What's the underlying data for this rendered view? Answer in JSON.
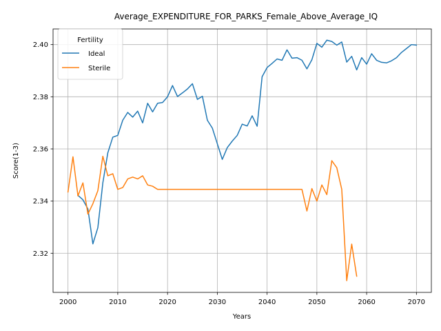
{
  "chart_data": {
    "type": "line",
    "title": "Average_EXPENDITURE_FOR_PARKS_Female_Above_Average_IQ",
    "xlabel": "Years",
    "ylabel": "Score(1-3)",
    "xlim": [
      1997,
      2073
    ],
    "ylim": [
      2.305,
      2.406
    ],
    "xticks": [
      2000,
      2010,
      2020,
      2030,
      2040,
      2050,
      2060,
      2070
    ],
    "xtick_labels": [
      "2000",
      "2010",
      "2020",
      "2030",
      "2040",
      "2050",
      "2060",
      "2070"
    ],
    "yticks": [
      2.32,
      2.34,
      2.36,
      2.38,
      2.4
    ],
    "ytick_labels": [
      "2.32",
      "2.34",
      "2.36",
      "2.38",
      "2.40"
    ],
    "grid": true,
    "legend": {
      "title": "Fertility",
      "placement": "top-left"
    },
    "series": [
      {
        "name": "Ideal",
        "color": "#1f77b4",
        "x": [
          2002,
          2003,
          2004,
          2005,
          2006,
          2007,
          2008,
          2009,
          2010,
          2011,
          2012,
          2013,
          2014,
          2015,
          2016,
          2017,
          2018,
          2019,
          2020,
          2021,
          2022,
          2023,
          2024,
          2025,
          2026,
          2027,
          2028,
          2029,
          2030,
          2031,
          2032,
          2033,
          2034,
          2035,
          2036,
          2037,
          2038,
          2039,
          2040,
          2041,
          2042,
          2043,
          2044,
          2045,
          2046,
          2047,
          2048,
          2049,
          2050,
          2051,
          2052,
          2053,
          2054,
          2055,
          2056,
          2057,
          2058,
          2059,
          2060,
          2061,
          2062,
          2063,
          2064,
          2065,
          2066,
          2067,
          2068,
          2069,
          2070
        ],
        "values": [
          2.3422,
          2.3405,
          2.337,
          2.3236,
          2.3298,
          2.347,
          2.3585,
          2.3645,
          2.3652,
          2.371,
          2.374,
          2.3722,
          2.3745,
          2.37,
          2.3775,
          2.3742,
          2.3775,
          2.3778,
          2.38,
          2.3843,
          2.3801,
          2.3815,
          2.383,
          2.385,
          2.379,
          2.3802,
          2.371,
          2.368,
          2.362,
          2.356,
          2.3605,
          2.363,
          2.3652,
          2.3695,
          2.3688,
          2.3727,
          2.3687,
          2.3877,
          2.3912,
          2.3928,
          2.3945,
          2.394,
          2.398,
          2.3948,
          2.395,
          2.394,
          2.3907,
          2.3942,
          2.4005,
          2.399,
          2.4017,
          2.4012,
          2.3998,
          2.401,
          2.3933,
          2.3955,
          2.3903,
          2.395,
          2.3925,
          2.3965,
          2.394,
          2.3932,
          2.393,
          2.3938,
          2.395,
          2.397,
          2.3985,
          2.4,
          2.3998
        ]
      },
      {
        "name": "Sterile",
        "color": "#ff7f0e",
        "x": [
          2000,
          2001,
          2002,
          2003,
          2004,
          2005,
          2006,
          2007,
          2008,
          2009,
          2010,
          2011,
          2012,
          2013,
          2014,
          2015,
          2016,
          2017,
          2018,
          2019,
          2020,
          2021,
          2022,
          2023,
          2024,
          2025,
          2026,
          2027,
          2028,
          2029,
          2030,
          2031,
          2032,
          2033,
          2034,
          2035,
          2036,
          2037,
          2038,
          2039,
          2040,
          2041,
          2042,
          2043,
          2044,
          2045,
          2046,
          2047,
          2048,
          2049,
          2050,
          2051,
          2052,
          2053,
          2054,
          2055,
          2056,
          2057,
          2058
        ],
        "values": [
          2.3435,
          2.357,
          2.342,
          2.347,
          2.335,
          2.339,
          2.344,
          2.3572,
          2.3497,
          2.3505,
          2.3445,
          2.3452,
          2.3485,
          2.3492,
          2.3485,
          2.3497,
          2.3462,
          2.3457,
          2.3445,
          2.3445,
          2.3445,
          2.3445,
          2.3445,
          2.3445,
          2.3445,
          2.3445,
          2.3445,
          2.3445,
          2.3445,
          2.3445,
          2.3445,
          2.3445,
          2.3445,
          2.3445,
          2.3445,
          2.3445,
          2.3445,
          2.3445,
          2.3445,
          2.3445,
          2.3445,
          2.3445,
          2.3445,
          2.3445,
          2.3445,
          2.3445,
          2.3445,
          2.3445,
          2.3362,
          2.3448,
          2.34,
          2.3462,
          2.3425,
          2.3555,
          2.3528,
          2.3445,
          2.3095,
          2.3235,
          2.3112
        ]
      }
    ]
  }
}
